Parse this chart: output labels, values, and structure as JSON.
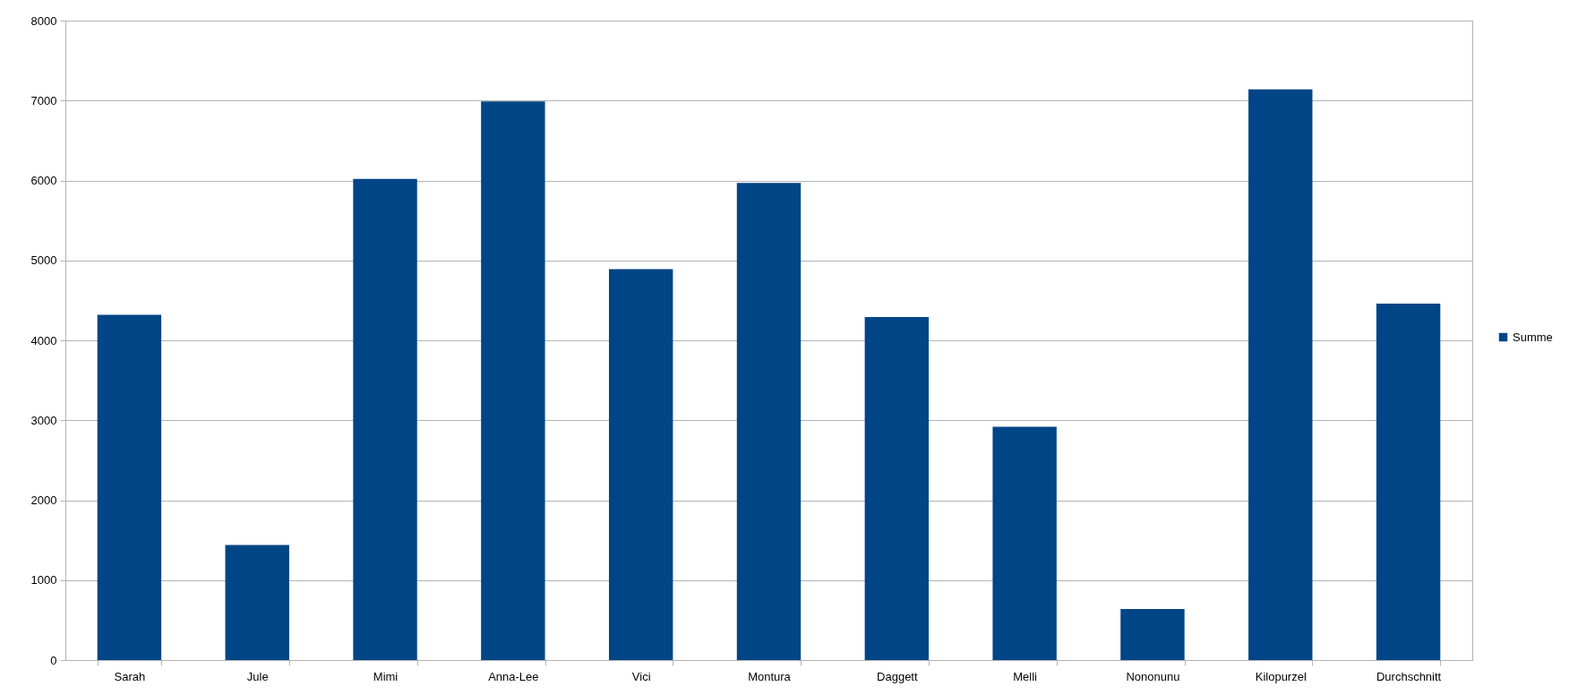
{
  "chart_data": {
    "type": "bar",
    "categories": [
      "Sarah",
      "Jule",
      "Mimi",
      "Anna-Lee",
      "Vici",
      "Montura",
      "Daggett",
      "Melli",
      "Nononunu",
      "Kilopurzel",
      "Durchschnitt"
    ],
    "series": [
      {
        "name": "Summe",
        "color": "#004586",
        "values": [
          4320,
          1440,
          6020,
          6990,
          4890,
          5970,
          4290,
          2920,
          640,
          7140,
          4460
        ]
      }
    ],
    "ylim": [
      0,
      8000
    ],
    "yticks": [
      0,
      1000,
      2000,
      3000,
      4000,
      5000,
      6000,
      7000,
      8000
    ],
    "grid": "y",
    "legend": "right"
  }
}
